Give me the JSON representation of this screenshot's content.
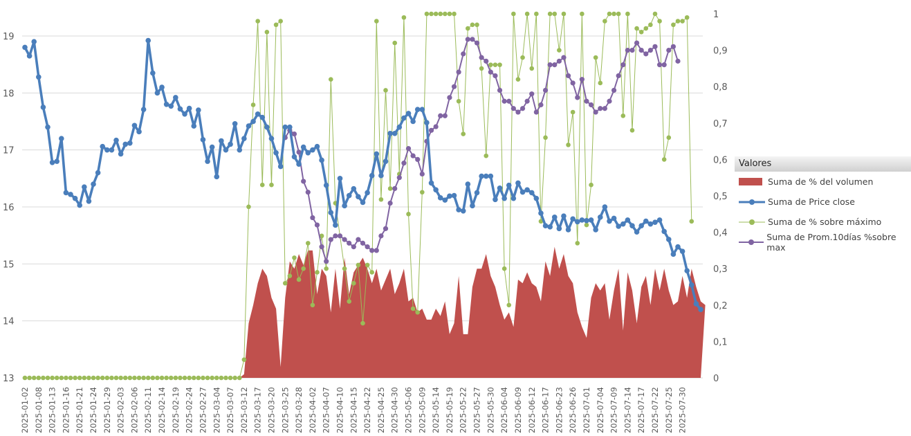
{
  "chart_data": {
    "type": "combo",
    "title": "",
    "left_axis": {
      "min": 13,
      "max": 19,
      "ticks": [
        "13",
        "14",
        "15",
        "16",
        "17",
        "18",
        "19"
      ]
    },
    "right_axis": {
      "min": 0,
      "max": 1,
      "ticks": [
        "0",
        "0,1",
        "0,2",
        "0,3",
        "0,4",
        "0,5",
        "0,6",
        "0,7",
        "0,8",
        "0,9",
        "1"
      ]
    },
    "x_tick_labels": [
      "2025-01-02",
      "2025-01-08",
      "2025-01-13",
      "2025-01-16",
      "2025-01-21",
      "2025-01-24",
      "2025-01-29",
      "2025-02-03",
      "2025-02-06",
      "2025-02-11",
      "2025-02-14",
      "2025-02-19",
      "2025-02-24",
      "2025-02-27",
      "2025-03-04",
      "2025-03-07",
      "2025-03-12",
      "2025-03-17",
      "2025-03-20",
      "2025-03-25",
      "2025-03-28",
      "2025-04-02",
      "2025-04-07",
      "2025-04-10",
      "2025-04-15",
      "2025-04-22",
      "2025-04-25",
      "2025-04-30",
      "2025-05-06",
      "2025-05-09",
      "2025-05-14",
      "2025-05-19",
      "2025-05-22",
      "2025-05-27",
      "2025-05-30",
      "2025-06-04",
      "2025-06-09",
      "2025-06-12",
      "2025-06-17",
      "2025-06-23",
      "2025-06-26",
      "2025-07-01",
      "2025-07-04",
      "2025-07-09",
      "2025-07-14",
      "2025-07-17",
      "2025-07-22",
      "2025-07-25",
      "2025-07-30"
    ],
    "legend": {
      "title": "Valores",
      "position": "right",
      "items": [
        {
          "label": "Suma de % del volumen",
          "color": "#c0504d",
          "kind": "area"
        },
        {
          "label": "Suma de Price close",
          "color": "#4a7ebb",
          "kind": "line-thick"
        },
        {
          "label": "Suma de % sobre máximo",
          "color": "#9bbb59",
          "kind": "line-thin"
        },
        {
          "label": "Suma de Prom.10días %sobre max",
          "color": "#8064a2",
          "kind": "line"
        }
      ]
    },
    "grid": true,
    "series": [
      {
        "name": "Suma de Price close",
        "axis": "left",
        "type": "line",
        "values": [
          18.8,
          18.65,
          18.9,
          18.28,
          17.75,
          17.4,
          16.78,
          16.8,
          17.2,
          16.25,
          16.22,
          16.15,
          16.03,
          16.35,
          16.1,
          16.4,
          16.6,
          17.06,
          17.0,
          17.0,
          17.17,
          16.93,
          17.1,
          17.12,
          17.43,
          17.32,
          17.71,
          18.92,
          18.35,
          18.0,
          18.1,
          17.8,
          17.77,
          17.92,
          17.72,
          17.63,
          17.73,
          17.42,
          17.7,
          17.18,
          16.8,
          17.05,
          16.53,
          17.16,
          17.0,
          17.1,
          17.46,
          17.0,
          17.2,
          17.42,
          17.5,
          17.63,
          17.57,
          17.4,
          17.2,
          16.95,
          16.71,
          17.4,
          17.4,
          16.88,
          16.75,
          17.05,
          16.95,
          17.0,
          17.06,
          16.82,
          16.38,
          15.9,
          15.68,
          16.5,
          16.02,
          16.2,
          16.32,
          16.18,
          16.08,
          16.25,
          16.55,
          16.93,
          16.55,
          16.8,
          17.29,
          17.29,
          17.4,
          17.56,
          17.64,
          17.5,
          17.71,
          17.71,
          17.48,
          16.42,
          16.3,
          16.16,
          16.12,
          16.19,
          16.2,
          15.95,
          15.93,
          16.4,
          16.02,
          16.25,
          16.54,
          16.54,
          16.54,
          16.13,
          16.33,
          16.15,
          16.38,
          16.15,
          16.42,
          16.26,
          16.3,
          16.25,
          16.15,
          15.89,
          15.67,
          15.65,
          15.82,
          15.62,
          15.84,
          15.6,
          15.79,
          15.74,
          15.77,
          15.76,
          15.77,
          15.6,
          15.82,
          16.0,
          15.75,
          15.8,
          15.66,
          15.7,
          15.77,
          15.67,
          15.56,
          15.67,
          15.75,
          15.7,
          15.73,
          15.77,
          15.57,
          15.43,
          15.17,
          15.3,
          15.22,
          14.88,
          14.63,
          14.3,
          14.2
        ]
      },
      {
        "name": "Suma de % sobre máximo",
        "axis": "right",
        "type": "line",
        "values": [
          0,
          0,
          0,
          0,
          0,
          0,
          0,
          0,
          0,
          0,
          0,
          0,
          0,
          0,
          0,
          0,
          0,
          0,
          0,
          0,
          0,
          0,
          0,
          0,
          0,
          0,
          0,
          0,
          0,
          0,
          0,
          0,
          0,
          0,
          0,
          0,
          0,
          0,
          0,
          0,
          0,
          0,
          0,
          0,
          0,
          0,
          0,
          0,
          0.05,
          0.47,
          0.75,
          0.98,
          0.53,
          0.95,
          0.53,
          0.97,
          0.98,
          0.26,
          0.28,
          0.33,
          0.27,
          0.3,
          0.37,
          0.2,
          0.29,
          0.39,
          0.3,
          0.82,
          0.48,
          0.39,
          0.3,
          0.21,
          0.26,
          0.31,
          0.15,
          0.31,
          0.29,
          0.98,
          0.49,
          0.79,
          0.52,
          0.92,
          0.56,
          0.99,
          0.45,
          0.19,
          0.18,
          0.51,
          1.0,
          1.0,
          1.0,
          1.0,
          1.0,
          1.0,
          1.0,
          0.76,
          0.67,
          0.96,
          0.97,
          0.97,
          0.85,
          0.61,
          0.86,
          0.86,
          0.86,
          0.3,
          0.2,
          1.0,
          0.82,
          0.88,
          1.0,
          0.85,
          1.0,
          0.43,
          0.66,
          1.0,
          1.0,
          0.9,
          1.0,
          0.64,
          0.73,
          0.37,
          1.0,
          0.42,
          0.53,
          0.88,
          0.81,
          0.98,
          1.0,
          1.0,
          1.0,
          0.72,
          1.0,
          0.68,
          0.96,
          0.95,
          0.96,
          0.97,
          1.0,
          0.98,
          0.6,
          0.66,
          0.97,
          0.98,
          0.98,
          0.99,
          0.43
        ]
      },
      {
        "name": "Suma de Prom.10días %sobre max",
        "axis": "right",
        "type": "line",
        "values": [
          null,
          null,
          null,
          null,
          null,
          null,
          null,
          null,
          null,
          null,
          null,
          null,
          null,
          null,
          null,
          null,
          null,
          null,
          null,
          null,
          null,
          null,
          null,
          null,
          null,
          null,
          null,
          null,
          null,
          null,
          null,
          null,
          null,
          null,
          null,
          null,
          null,
          null,
          null,
          null,
          null,
          null,
          null,
          null,
          null,
          null,
          null,
          null,
          null,
          null,
          null,
          null,
          null,
          null,
          null,
          null,
          null,
          0.66,
          0.68,
          0.67,
          0.62,
          0.54,
          0.51,
          0.44,
          0.42,
          0.36,
          0.32,
          0.38,
          0.39,
          0.39,
          0.38,
          0.37,
          0.36,
          0.38,
          0.37,
          0.36,
          0.35,
          0.35,
          0.39,
          0.41,
          0.48,
          0.52,
          0.55,
          0.59,
          0.63,
          0.61,
          0.6,
          0.56,
          0.65,
          0.68,
          0.69,
          0.72,
          0.72,
          0.77,
          0.8,
          0.84,
          0.89,
          0.93,
          0.93,
          0.92,
          0.88,
          0.87,
          0.84,
          0.83,
          0.79,
          0.76,
          0.76,
          0.74,
          0.73,
          0.74,
          0.76,
          0.78,
          0.73,
          0.75,
          0.79,
          0.86,
          0.86,
          0.87,
          0.88,
          0.83,
          0.81,
          0.77,
          0.82,
          0.76,
          0.75,
          0.73,
          0.74,
          0.74,
          0.76,
          0.79,
          0.83,
          0.86,
          0.9,
          0.9,
          0.92,
          0.9,
          0.89,
          0.9,
          0.91,
          0.86,
          0.86,
          0.9,
          0.91,
          0.87
        ]
      },
      {
        "name": "Suma de % del volumen",
        "axis": "right",
        "type": "area",
        "values": [
          0,
          0,
          0,
          0,
          0,
          0,
          0,
          0,
          0,
          0,
          0,
          0,
          0,
          0,
          0,
          0,
          0,
          0,
          0,
          0,
          0,
          0,
          0,
          0,
          0,
          0,
          0,
          0,
          0,
          0,
          0,
          0,
          0,
          0,
          0,
          0,
          0,
          0,
          0,
          0,
          0,
          0,
          0,
          0,
          0,
          0,
          0,
          0,
          0.01,
          0.15,
          0.2,
          0.26,
          0.3,
          0.28,
          0.22,
          0.19,
          0.03,
          0.22,
          0.32,
          0.3,
          0.34,
          0.31,
          0.35,
          0.35,
          0.23,
          0.3,
          0.28,
          0.18,
          0.3,
          0.19,
          0.33,
          0.23,
          0.29,
          0.31,
          0.33,
          0.3,
          0.26,
          0.3,
          0.24,
          0.27,
          0.3,
          0.23,
          0.26,
          0.3,
          0.21,
          0.22,
          0.18,
          0.19,
          0.16,
          0.16,
          0.19,
          0.17,
          0.21,
          0.12,
          0.15,
          0.28,
          0.12,
          0.12,
          0.25,
          0.3,
          0.3,
          0.34,
          0.28,
          0.25,
          0.2,
          0.16,
          0.18,
          0.14,
          0.27,
          0.26,
          0.29,
          0.26,
          0.25,
          0.21,
          0.32,
          0.28,
          0.36,
          0.3,
          0.34,
          0.28,
          0.26,
          0.18,
          0.14,
          0.11,
          0.22,
          0.26,
          0.24,
          0.26,
          0.16,
          0.24,
          0.3,
          0.13,
          0.29,
          0.24,
          0.15,
          0.25,
          0.28,
          0.2,
          0.3,
          0.24,
          0.3,
          0.24,
          0.2,
          0.21,
          0.28,
          0.22,
          0.3,
          0.25,
          0.21,
          0.2
        ]
      }
    ]
  }
}
